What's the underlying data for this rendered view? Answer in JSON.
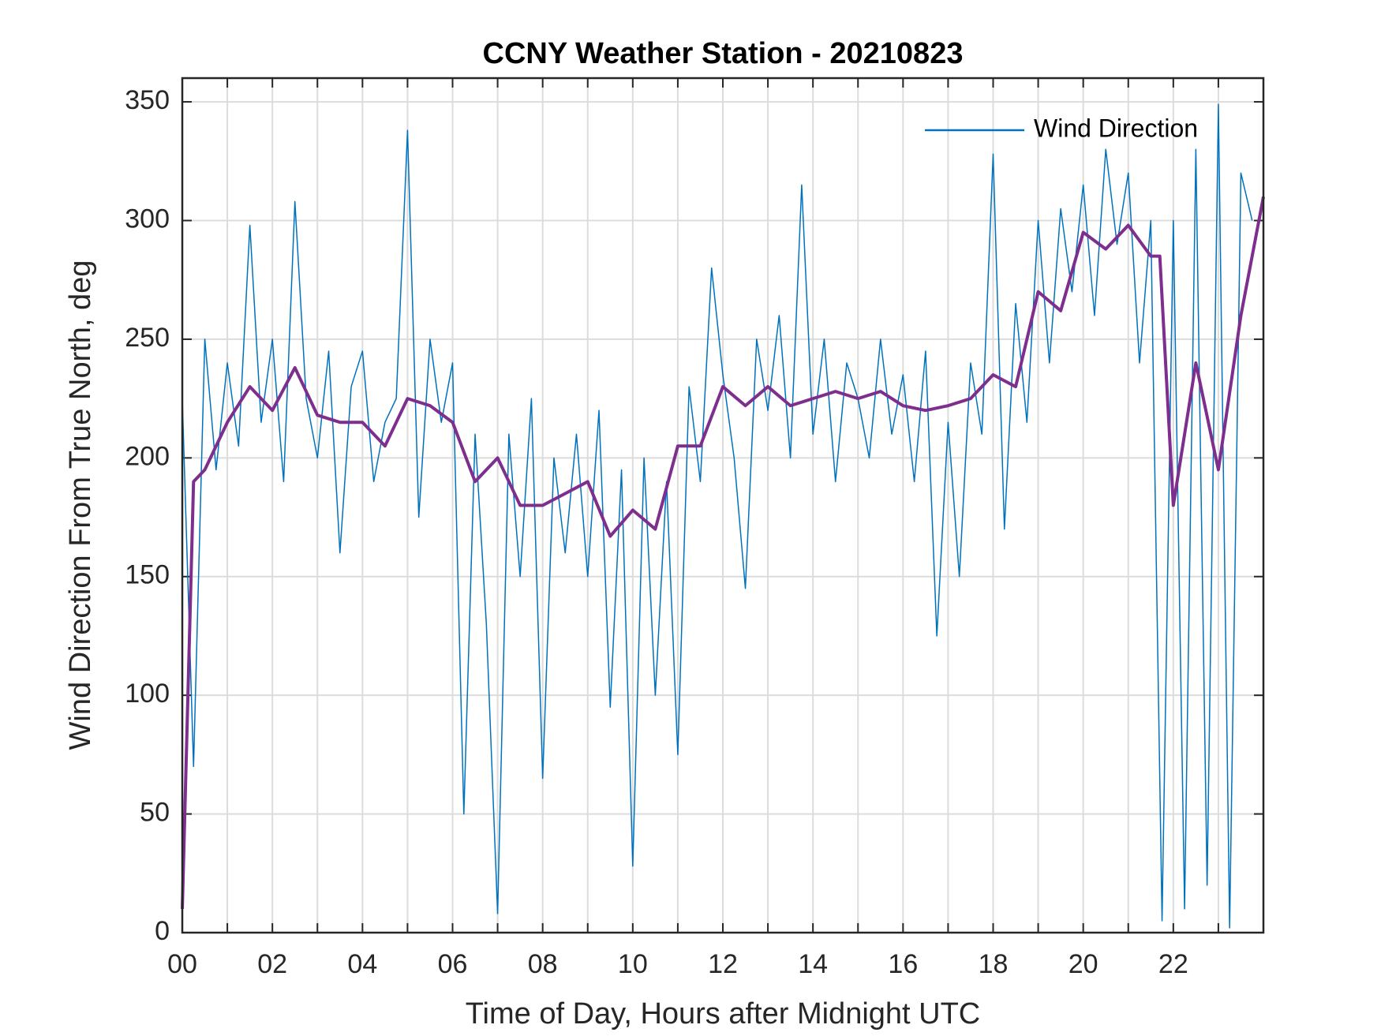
{
  "chart_data": {
    "type": "line",
    "title": "CCNY Weather Station - 20210823",
    "xlabel": "Time of Day, Hours after Midnight UTC",
    "ylabel": "Wind Direction From True North, deg",
    "xlim": [
      0,
      24
    ],
    "ylim": [
      0,
      360
    ],
    "xticks": [
      {
        "value": 0,
        "label": "00"
      },
      {
        "value": 2,
        "label": "02"
      },
      {
        "value": 4,
        "label": "04"
      },
      {
        "value": 6,
        "label": "06"
      },
      {
        "value": 8,
        "label": "08"
      },
      10,
      12,
      14,
      16,
      18,
      20,
      22
    ],
    "xminor_ticks": [
      1,
      3,
      5,
      7,
      9,
      11,
      13,
      15,
      17,
      19,
      21,
      23
    ],
    "yticks": [
      0,
      50,
      100,
      150,
      200,
      250,
      300,
      350
    ],
    "grid": true,
    "legend": "upper right",
    "series": [
      {
        "name": "Wind Direction",
        "color": "#0072bd",
        "width": 1.5,
        "x": [
          0,
          0.25,
          0.5,
          0.75,
          1,
          1.25,
          1.5,
          1.75,
          2,
          2.25,
          2.5,
          2.75,
          3,
          3.25,
          3.5,
          3.75,
          4,
          4.25,
          4.5,
          4.75,
          5,
          5.25,
          5.5,
          5.75,
          6,
          6.25,
          6.5,
          6.75,
          7,
          7.25,
          7.5,
          7.75,
          8,
          8.25,
          8.5,
          8.75,
          9,
          9.25,
          9.5,
          9.75,
          10,
          10.25,
          10.5,
          10.75,
          11,
          11.25,
          11.5,
          11.75,
          12,
          12.25,
          12.5,
          12.75,
          13,
          13.25,
          13.5,
          13.75,
          14,
          14.25,
          14.5,
          14.75,
          15,
          15.25,
          15.5,
          15.75,
          16,
          16.25,
          16.5,
          16.75,
          17,
          17.25,
          17.5,
          17.75,
          18,
          18.25,
          18.5,
          18.75,
          19,
          19.25,
          19.5,
          19.75,
          20,
          20.25,
          20.5,
          20.75,
          21,
          21.25,
          21.5,
          21.75,
          22,
          22.25,
          22.5,
          22.75,
          23,
          23.25,
          23.5,
          23.75
        ],
        "values": [
          225,
          70,
          250,
          195,
          240,
          205,
          298,
          215,
          250,
          190,
          308,
          225,
          200,
          245,
          160,
          230,
          245,
          190,
          215,
          225,
          338,
          175,
          250,
          215,
          240,
          50,
          210,
          130,
          8,
          210,
          150,
          225,
          65,
          200,
          160,
          210,
          150,
          220,
          95,
          195,
          28,
          200,
          100,
          190,
          75,
          230,
          190,
          280,
          235,
          200,
          145,
          250,
          220,
          260,
          200,
          315,
          210,
          250,
          190,
          240,
          225,
          200,
          250,
          210,
          235,
          190,
          245,
          125,
          215,
          150,
          240,
          210,
          328,
          170,
          265,
          215,
          300,
          240,
          305,
          270,
          315,
          260,
          330,
          290,
          320,
          240,
          300,
          5,
          300,
          10,
          330,
          20,
          349,
          2,
          320,
          300
        ]
      },
      {
        "color": "#7e2f8e",
        "width": 4,
        "x": [
          0,
          0.25,
          0.5,
          1,
          1.5,
          2,
          2.5,
          3,
          3.5,
          4,
          4.5,
          5,
          5.5,
          6,
          6.5,
          7,
          7.5,
          8,
          8.5,
          9,
          9.5,
          10,
          10.5,
          11,
          11.5,
          12,
          12.5,
          13,
          13.5,
          14,
          14.5,
          15,
          15.5,
          16,
          16.5,
          17,
          17.5,
          18,
          18.5,
          19,
          19.5,
          20,
          20.5,
          21,
          21.5,
          21.7,
          22,
          22.5,
          23,
          23.5,
          24
        ],
        "values": [
          10,
          190,
          195,
          215,
          230,
          220,
          238,
          218,
          215,
          215,
          205,
          225,
          222,
          215,
          190,
          200,
          180,
          180,
          185,
          190,
          167,
          178,
          170,
          205,
          205,
          230,
          222,
          230,
          222,
          225,
          228,
          225,
          228,
          222,
          220,
          222,
          225,
          235,
          230,
          270,
          262,
          295,
          288,
          298,
          285,
          285,
          180,
          240,
          195,
          260,
          310
        ]
      }
    ]
  }
}
